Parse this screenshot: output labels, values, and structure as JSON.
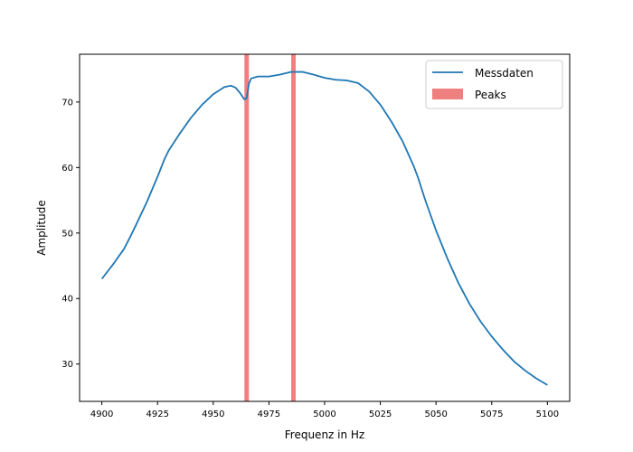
{
  "chart_data": {
    "type": "line",
    "title": "",
    "xlabel": "Frequenz in Hz",
    "ylabel": "Amplitude",
    "xlim": [
      4890,
      5110
    ],
    "ylim": [
      24.3,
      77.3
    ],
    "xticks": [
      4900,
      4925,
      4950,
      4975,
      5000,
      5025,
      5050,
      5075,
      5100
    ],
    "yticks": [
      30,
      40,
      50,
      60,
      70
    ],
    "grid": false,
    "legend": {
      "position": "top-right"
    },
    "series": [
      {
        "name": "Messdaten",
        "color": "#1f77b4",
        "points": [
          [
            4900,
            43.0
          ],
          [
            4905,
            45.2
          ],
          [
            4910,
            47.6
          ],
          [
            4913,
            49.6
          ],
          [
            4915,
            51.0
          ],
          [
            4920,
            54.6
          ],
          [
            4925,
            58.6
          ],
          [
            4928,
            61.2
          ],
          [
            4930,
            62.6
          ],
          [
            4935,
            65.2
          ],
          [
            4940,
            67.6
          ],
          [
            4945,
            69.6
          ],
          [
            4950,
            71.2
          ],
          [
            4955,
            72.3
          ],
          [
            4958,
            72.5
          ],
          [
            4960,
            72.2
          ],
          [
            4962,
            71.4
          ],
          [
            4964,
            70.4
          ],
          [
            4965,
            70.6
          ],
          [
            4966,
            72.8
          ],
          [
            4967,
            73.6
          ],
          [
            4970,
            73.9
          ],
          [
            4975,
            73.9
          ],
          [
            4980,
            74.2
          ],
          [
            4985,
            74.6
          ],
          [
            4990,
            74.6
          ],
          [
            4995,
            74.2
          ],
          [
            5000,
            73.7
          ],
          [
            5005,
            73.4
          ],
          [
            5010,
            73.3
          ],
          [
            5015,
            72.9
          ],
          [
            5020,
            71.6
          ],
          [
            5025,
            69.6
          ],
          [
            5030,
            67.0
          ],
          [
            5035,
            64.0
          ],
          [
            5040,
            60.2
          ],
          [
            5042,
            58.4
          ],
          [
            5045,
            55.2
          ],
          [
            5050,
            50.4
          ],
          [
            5055,
            46.2
          ],
          [
            5060,
            42.4
          ],
          [
            5065,
            39.2
          ],
          [
            5070,
            36.5
          ],
          [
            5075,
            34.2
          ],
          [
            5080,
            32.2
          ],
          [
            5085,
            30.4
          ],
          [
            5090,
            29.0
          ],
          [
            5095,
            27.8
          ],
          [
            5100,
            26.8
          ]
        ]
      }
    ],
    "spans": [
      {
        "name": "Peaks",
        "color": "#f08080",
        "ranges": [
          [
            4964,
            4966
          ],
          [
            4985,
            4987
          ]
        ]
      }
    ]
  }
}
